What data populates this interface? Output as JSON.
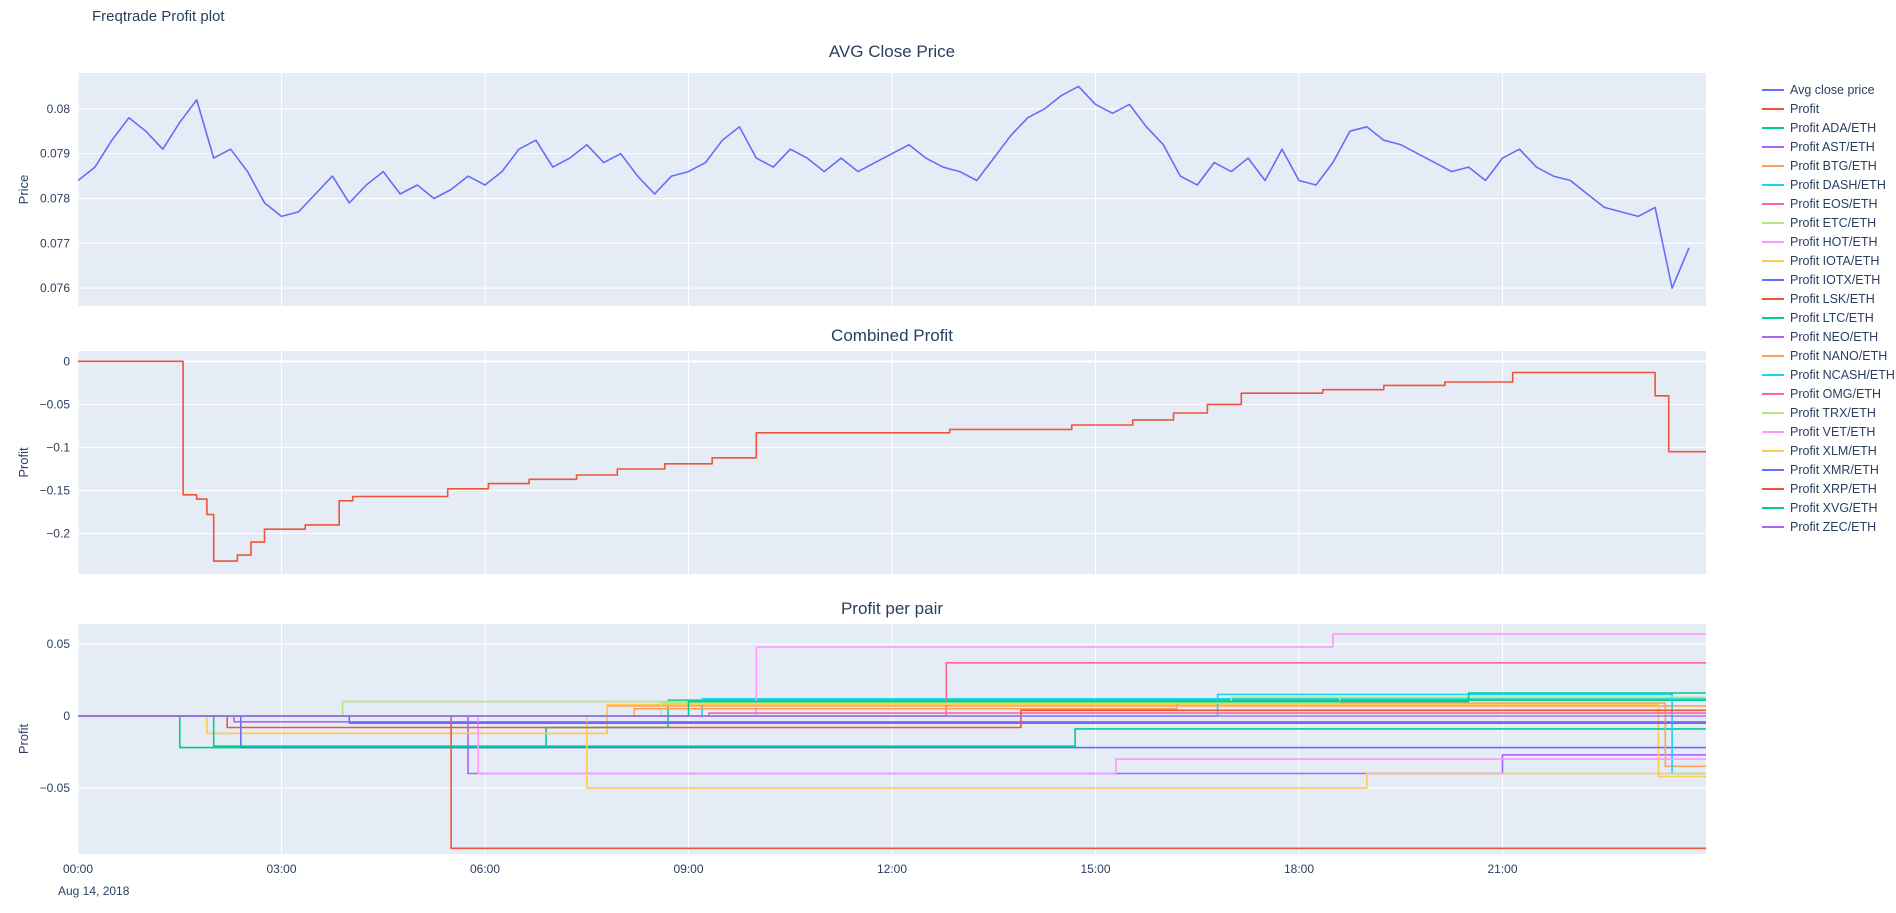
{
  "page_title": "Freqtrade Profit plot",
  "theme": {
    "plot_bg": "#E5ECF6",
    "grid": "#FFFFFF",
    "paper_bg": "#FFFFFF",
    "text": "#2A3F5F"
  },
  "xaxis": {
    "lim": [
      0,
      24
    ],
    "ticks": [
      0,
      3,
      6,
      9,
      12,
      15,
      18,
      21
    ],
    "labels": [
      "00:00",
      "03:00",
      "06:00",
      "09:00",
      "12:00",
      "15:00",
      "18:00",
      "21:00"
    ],
    "date_label": "Aug 14, 2018"
  },
  "legend": {
    "items": [
      {
        "label": "Avg close price",
        "color": "#636EFA"
      },
      {
        "label": "Profit",
        "color": "#EF553B"
      },
      {
        "label": "Profit ADA/ETH",
        "color": "#00CC96"
      },
      {
        "label": "Profit AST/ETH",
        "color": "#AB63FA"
      },
      {
        "label": "Profit BTG/ETH",
        "color": "#FFA15A"
      },
      {
        "label": "Profit DASH/ETH",
        "color": "#19D3F3"
      },
      {
        "label": "Profit EOS/ETH",
        "color": "#FF6692"
      },
      {
        "label": "Profit ETC/ETH",
        "color": "#B6E880"
      },
      {
        "label": "Profit HOT/ETH",
        "color": "#FF97FF"
      },
      {
        "label": "Profit IOTA/ETH",
        "color": "#FECB52"
      },
      {
        "label": "Profit IOTX/ETH",
        "color": "#636EFA"
      },
      {
        "label": "Profit LSK/ETH",
        "color": "#EF553B"
      },
      {
        "label": "Profit LTC/ETH",
        "color": "#00CC96"
      },
      {
        "label": "Profit NEO/ETH",
        "color": "#AB63FA"
      },
      {
        "label": "Profit NANO/ETH",
        "color": "#FFA15A"
      },
      {
        "label": "Profit NCASH/ETH",
        "color": "#19D3F3"
      },
      {
        "label": "Profit OMG/ETH",
        "color": "#FF6692"
      },
      {
        "label": "Profit TRX/ETH",
        "color": "#B6E880"
      },
      {
        "label": "Profit VET/ETH",
        "color": "#FF97FF"
      },
      {
        "label": "Profit XLM/ETH",
        "color": "#FECB52"
      },
      {
        "label": "Profit XMR/ETH",
        "color": "#636EFA"
      },
      {
        "label": "Profit XRP/ETH",
        "color": "#EF553B"
      },
      {
        "label": "Profit XVG/ETH",
        "color": "#00CC96"
      },
      {
        "label": "Profit ZEC/ETH",
        "color": "#AB63FA"
      }
    ]
  },
  "chart_data": {
    "note": "see charts",
    "type": "line"
  },
  "charts": [
    {
      "id": "avg-close-price",
      "type": "line",
      "title": "AVG Close Price",
      "ylabel": "Price",
      "yticks": [
        0.076,
        0.077,
        0.078,
        0.079,
        0.08
      ],
      "ytick_labels": [
        "0.076",
        "0.077",
        "0.078",
        "0.079",
        "0.08"
      ],
      "ylim": [
        0.0756,
        0.0808
      ],
      "series": [
        {
          "name": "Avg close price",
          "color": "#636EFA",
          "mode": "line",
          "t0": 0,
          "dt": 0.25,
          "y": [
            0.0784,
            0.0787,
            0.0793,
            0.0798,
            0.0795,
            0.0791,
            0.0797,
            0.0802,
            0.0789,
            0.0791,
            0.0786,
            0.0779,
            0.0776,
            0.0777,
            0.0781,
            0.0785,
            0.0779,
            0.0783,
            0.0786,
            0.0781,
            0.0783,
            0.078,
            0.0782,
            0.0785,
            0.0783,
            0.0786,
            0.0791,
            0.0793,
            0.0787,
            0.0789,
            0.0792,
            0.0788,
            0.079,
            0.0785,
            0.0781,
            0.0785,
            0.0786,
            0.0788,
            0.0793,
            0.0796,
            0.0789,
            0.0787,
            0.0791,
            0.0789,
            0.0786,
            0.0789,
            0.0786,
            0.0788,
            0.079,
            0.0792,
            0.0789,
            0.0787,
            0.0786,
            0.0784,
            0.0789,
            0.0794,
            0.0798,
            0.08,
            0.0803,
            0.0805,
            0.0801,
            0.0799,
            0.0801,
            0.0796,
            0.0792,
            0.0785,
            0.0783,
            0.0788,
            0.0786,
            0.0789,
            0.0784,
            0.0791,
            0.0784,
            0.0783,
            0.0788,
            0.0795,
            0.0796,
            0.0793,
            0.0792,
            0.079,
            0.0788,
            0.0786,
            0.0787,
            0.0784,
            0.0789,
            0.0791,
            0.0787,
            0.0785,
            0.0784,
            0.0781,
            0.0778,
            0.0777,
            0.0776,
            0.0778,
            0.076,
            0.0769
          ]
        }
      ]
    },
    {
      "id": "combined-profit",
      "type": "line",
      "title": "Combined Profit",
      "ylabel": "Profit",
      "yticks": [
        0,
        -0.05,
        -0.1,
        -0.15,
        -0.2
      ],
      "ytick_labels": [
        "0",
        "−0.05",
        "−0.1",
        "−0.15",
        "−0.2"
      ],
      "ylim": [
        -0.247,
        0.012
      ],
      "series": [
        {
          "name": "Profit",
          "color": "#EF553B",
          "mode": "step",
          "points": [
            [
              0,
              0
            ],
            [
              1.55,
              -0.155
            ],
            [
              1.75,
              -0.16
            ],
            [
              1.9,
              -0.178
            ],
            [
              2.0,
              -0.232
            ],
            [
              2.35,
              -0.225
            ],
            [
              2.55,
              -0.21
            ],
            [
              2.75,
              -0.195
            ],
            [
              3.35,
              -0.19
            ],
            [
              3.85,
              -0.162
            ],
            [
              4.05,
              -0.157
            ],
            [
              5.45,
              -0.148
            ],
            [
              6.05,
              -0.142
            ],
            [
              6.65,
              -0.137
            ],
            [
              7.35,
              -0.132
            ],
            [
              7.95,
              -0.125
            ],
            [
              8.65,
              -0.119
            ],
            [
              9.35,
              -0.112
            ],
            [
              10.0,
              -0.083
            ],
            [
              12.85,
              -0.079
            ],
            [
              14.65,
              -0.074
            ],
            [
              15.55,
              -0.068
            ],
            [
              16.15,
              -0.06
            ],
            [
              16.65,
              -0.05
            ],
            [
              17.15,
              -0.037
            ],
            [
              18.35,
              -0.033
            ],
            [
              19.25,
              -0.028
            ],
            [
              20.15,
              -0.024
            ],
            [
              21.15,
              -0.013
            ],
            [
              23.25,
              -0.04
            ],
            [
              23.45,
              -0.105
            ],
            [
              24,
              -0.105
            ]
          ]
        }
      ]
    },
    {
      "id": "profit-per-pair",
      "type": "line",
      "title": "Profit per pair",
      "ylabel": "Profit",
      "yticks": [
        0.05,
        0,
        -0.05
      ],
      "ytick_labels": [
        "0.05",
        "0",
        "−0.05"
      ],
      "ylim": [
        -0.096,
        0.064
      ],
      "series": [
        {
          "name": "Profit ADA/ETH",
          "color": "#00CC96",
          "mode": "step",
          "points": [
            [
              0,
              0
            ],
            [
              1.5,
              -0.022
            ],
            [
              6.9,
              -0.008
            ],
            [
              8.7,
              0.011
            ],
            [
              24,
              0.011
            ]
          ]
        },
        {
          "name": "Profit AST/ETH",
          "color": "#AB63FA",
          "mode": "step",
          "points": [
            [
              0,
              0
            ],
            [
              5.75,
              -0.04
            ],
            [
              21.0,
              -0.027
            ],
            [
              24,
              -0.027
            ]
          ]
        },
        {
          "name": "Profit BTG/ETH",
          "color": "#FFA15A",
          "mode": "step",
          "points": [
            [
              0,
              0
            ],
            [
              2.0,
              -0.012
            ],
            [
              7.8,
              0.007
            ],
            [
              24,
              0.007
            ]
          ]
        },
        {
          "name": "Profit DASH/ETH",
          "color": "#19D3F3",
          "mode": "step",
          "points": [
            [
              0,
              0
            ],
            [
              9.2,
              0.012
            ],
            [
              24,
              0.012
            ]
          ]
        },
        {
          "name": "Profit EOS/ETH",
          "color": "#FF6692",
          "mode": "step",
          "points": [
            [
              0,
              0
            ],
            [
              12.8,
              0.037
            ],
            [
              24,
              0.037
            ]
          ]
        },
        {
          "name": "Profit ETC/ETH",
          "color": "#B6E880",
          "mode": "step",
          "points": [
            [
              0,
              0
            ],
            [
              3.9,
              0.01
            ],
            [
              17.0,
              0.013
            ],
            [
              24,
              0.013
            ]
          ]
        },
        {
          "name": "Profit HOT/ETH",
          "color": "#FF97FF",
          "mode": "step",
          "points": [
            [
              0,
              0
            ],
            [
              10.0,
              0.048
            ],
            [
              18.5,
              0.057
            ],
            [
              24,
              0.057
            ]
          ]
        },
        {
          "name": "Profit IOTA/ETH",
          "color": "#FECB52",
          "mode": "step",
          "points": [
            [
              0,
              0
            ],
            [
              1.9,
              -0.012
            ],
            [
              7.8,
              0.008
            ],
            [
              23.3,
              -0.042
            ],
            [
              24,
              -0.042
            ]
          ]
        },
        {
          "name": "Profit IOTX/ETH",
          "color": "#636EFA",
          "mode": "step",
          "points": [
            [
              0,
              0
            ],
            [
              2.4,
              -0.022
            ],
            [
              24,
              -0.022
            ]
          ]
        },
        {
          "name": "Profit LSK/ETH",
          "color": "#EF553B",
          "mode": "step",
          "points": [
            [
              0,
              0
            ],
            [
              5.5,
              -0.092
            ],
            [
              24,
              -0.092
            ]
          ]
        },
        {
          "name": "Profit LTC/ETH",
          "color": "#00CC96",
          "mode": "step",
          "points": [
            [
              0,
              0
            ],
            [
              2.0,
              -0.021
            ],
            [
              14.7,
              -0.009
            ],
            [
              24,
              -0.009
            ]
          ]
        },
        {
          "name": "Profit NEO/ETH",
          "color": "#AB63FA",
          "mode": "step",
          "points": [
            [
              0,
              0
            ],
            [
              2.3,
              -0.004
            ],
            [
              24,
              -0.004
            ]
          ]
        },
        {
          "name": "Profit NANO/ETH",
          "color": "#FFA15A",
          "mode": "step",
          "points": [
            [
              0,
              0
            ],
            [
              8.2,
              0.005
            ],
            [
              16.2,
              0.009
            ],
            [
              23.4,
              -0.035
            ],
            [
              24,
              -0.035
            ]
          ]
        },
        {
          "name": "Profit NCASH/ETH",
          "color": "#19D3F3",
          "mode": "step",
          "points": [
            [
              0,
              0
            ],
            [
              16.8,
              0.015
            ],
            [
              23.5,
              -0.04
            ],
            [
              24,
              -0.04
            ]
          ]
        },
        {
          "name": "Profit OMG/ETH",
          "color": "#FF6692",
          "mode": "step",
          "points": [
            [
              0,
              0
            ],
            [
              9.3,
              0.002
            ],
            [
              24,
              0.002
            ]
          ]
        },
        {
          "name": "Profit TRX/ETH",
          "color": "#B6E880",
          "mode": "step",
          "points": [
            [
              0,
              0
            ],
            [
              8.6,
              0.009
            ],
            [
              18.6,
              0.013
            ],
            [
              24,
              0.013
            ]
          ]
        },
        {
          "name": "Profit VET/ETH",
          "color": "#FF97FF",
          "mode": "step",
          "points": [
            [
              0,
              0
            ],
            [
              5.9,
              -0.04
            ],
            [
              15.3,
              -0.03
            ],
            [
              24,
              -0.03
            ]
          ]
        },
        {
          "name": "Profit XLM/ETH",
          "color": "#FECB52",
          "mode": "step",
          "points": [
            [
              0,
              0
            ],
            [
              7.5,
              -0.05
            ],
            [
              19.0,
              -0.04
            ],
            [
              24,
              -0.04
            ]
          ]
        },
        {
          "name": "Profit XMR/ETH",
          "color": "#636EFA",
          "mode": "step",
          "points": [
            [
              0,
              0
            ],
            [
              4.0,
              -0.005
            ],
            [
              24,
              -0.005
            ]
          ]
        },
        {
          "name": "Profit XRP/ETH",
          "color": "#EF553B",
          "mode": "step",
          "points": [
            [
              0,
              0
            ],
            [
              2.2,
              -0.008
            ],
            [
              13.9,
              0.004
            ],
            [
              24,
              0.004
            ]
          ]
        },
        {
          "name": "Profit XVG/ETH",
          "color": "#00CC96",
          "mode": "step",
          "points": [
            [
              0,
              0
            ],
            [
              9.0,
              0.01
            ],
            [
              20.5,
              0.016
            ],
            [
              24,
              0.016
            ]
          ]
        },
        {
          "name": "Profit ZEC/ETH",
          "color": "#AB63FA",
          "mode": "step",
          "points": [
            [
              0,
              0
            ],
            [
              24,
              0
            ]
          ]
        }
      ]
    }
  ]
}
